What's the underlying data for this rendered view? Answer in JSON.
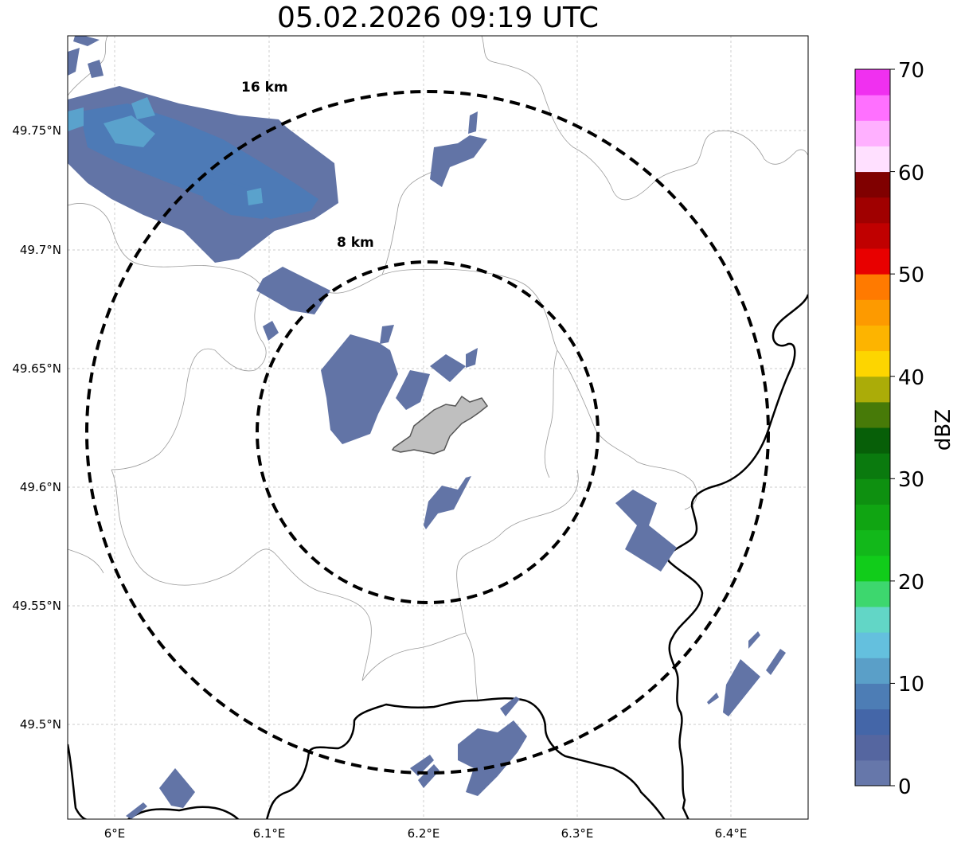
{
  "title": "05.02.2026 09:19 UTC",
  "axes": {
    "lon_ticks": [
      "6°E",
      "6.1°E",
      "6.2°E",
      "6.3°E",
      "6.4°E"
    ],
    "lat_ticks": [
      "49.75°N",
      "49.7°N",
      "49.65°N",
      "49.6°N",
      "49.55°N",
      "49.5°N"
    ],
    "grid": true
  },
  "range_rings": [
    {
      "label": "16 km",
      "radius_km": 16,
      "style": "dashed"
    },
    {
      "label": "8 km",
      "radius_km": 8,
      "style": "dashed"
    }
  ],
  "colorbar": {
    "label": "dBZ",
    "ticks": [
      "0",
      "10",
      "20",
      "30",
      "40",
      "50",
      "60",
      "70"
    ],
    "colors": [
      "#6677aa",
      "#5566a0",
      "#4466a8",
      "#4d7db5",
      "#5a9fc8",
      "#64c0de",
      "#62d6c6",
      "#3dd76e",
      "#11cc1a",
      "#12b81a",
      "#10a512",
      "#0e9010",
      "#0a7a0e",
      "#075f08",
      "#477a08",
      "#abac08",
      "#fdd500",
      "#fdb400",
      "#fd9a00",
      "#ff7a00",
      "#e80000",
      "#c00000",
      "#a00000",
      "#800000",
      "#ffe0ff",
      "#ffb0ff",
      "#ff70ff",
      "#f030f0"
    ]
  },
  "colors": {
    "precip_low": "#6274a6",
    "precip_mid": "#4d7ab6",
    "precip_high": "#5aa2cc",
    "city": "#bfbfbf",
    "border": "#000000",
    "admin": "#9a9a9a"
  }
}
